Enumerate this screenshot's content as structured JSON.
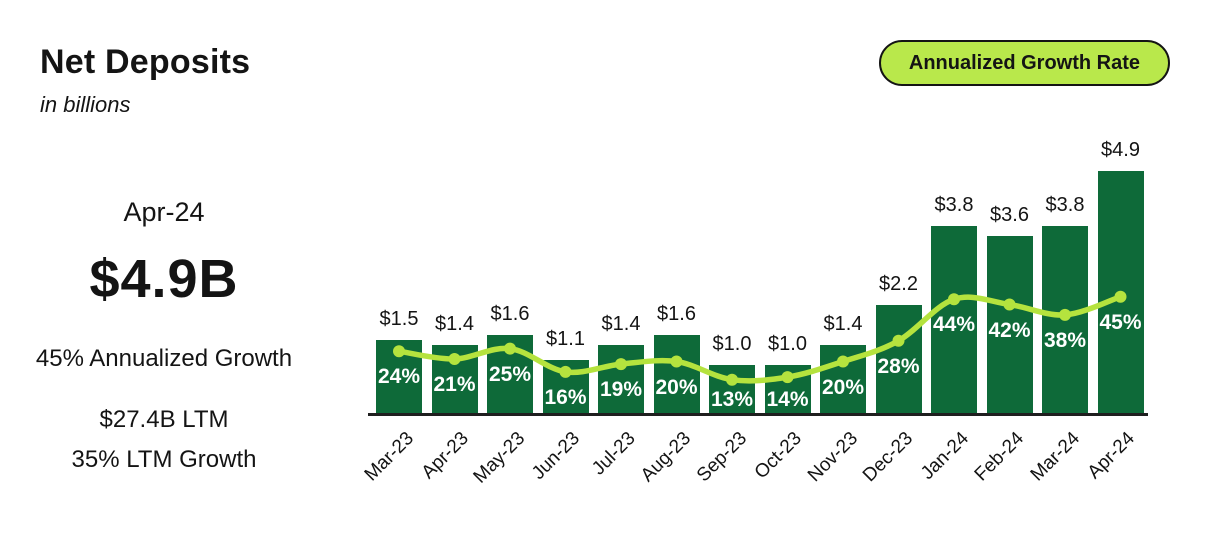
{
  "header": {
    "title": "Net Deposits",
    "subtitle": "in billions"
  },
  "badge": {
    "label": "Annualized Growth Rate"
  },
  "stats": {
    "period": "Apr-24",
    "value": "$4.9B",
    "growth": "45% Annualized Growth",
    "ltm_value": "$27.4B LTM",
    "ltm_growth": "35% LTM Growth"
  },
  "colors": {
    "bar": "#0e6a39",
    "line": "#b5e33e",
    "badge_bg": "#b9e84b",
    "badge_border": "#141414",
    "axis": "#1f1f1f",
    "text": "#141414",
    "pct_label_text": "#ffffff"
  },
  "chart_data": {
    "type": "bar",
    "title": "Net Deposits",
    "subtitle": "in billions",
    "categories": [
      "Mar-23",
      "Apr-23",
      "May-23",
      "Jun-23",
      "Jul-23",
      "Aug-23",
      "Sep-23",
      "Oct-23",
      "Nov-23",
      "Dec-23",
      "Jan-24",
      "Feb-24",
      "Mar-24",
      "Apr-24"
    ],
    "series": [
      {
        "name": "Net Deposits",
        "type": "bar",
        "unit": "$B",
        "values": [
          1.5,
          1.4,
          1.6,
          1.1,
          1.4,
          1.6,
          1.0,
          1.0,
          1.4,
          2.2,
          3.8,
          3.6,
          3.8,
          4.9
        ],
        "labels": [
          "$1.5",
          "$1.4",
          "$1.6",
          "$1.1",
          "$1.4",
          "$1.6",
          "$1.0",
          "$1.0",
          "$1.4",
          "$2.2",
          "$3.8",
          "$3.6",
          "$3.8",
          "$4.9"
        ],
        "color": "#0e6a39"
      },
      {
        "name": "Annualized Growth Rate",
        "type": "line",
        "unit": "%",
        "values": [
          24,
          21,
          25,
          16,
          19,
          20,
          13,
          14,
          20,
          28,
          44,
          42,
          38,
          45
        ],
        "labels": [
          "24%",
          "21%",
          "25%",
          "16%",
          "19%",
          "20%",
          "13%",
          "14%",
          "20%",
          "28%",
          "44%",
          "42%",
          "38%",
          "45%"
        ],
        "color": "#b5e33e"
      }
    ],
    "xlabel": "",
    "ylabel": "",
    "ylim": [
      0,
      5.2
    ],
    "grid": false,
    "y_axis_ticks_shown": false,
    "bar_value_labels_shown": true,
    "line_point_labels_shown": true,
    "x_tick_rotation": 45,
    "legend_position": "top-right pill badge"
  }
}
